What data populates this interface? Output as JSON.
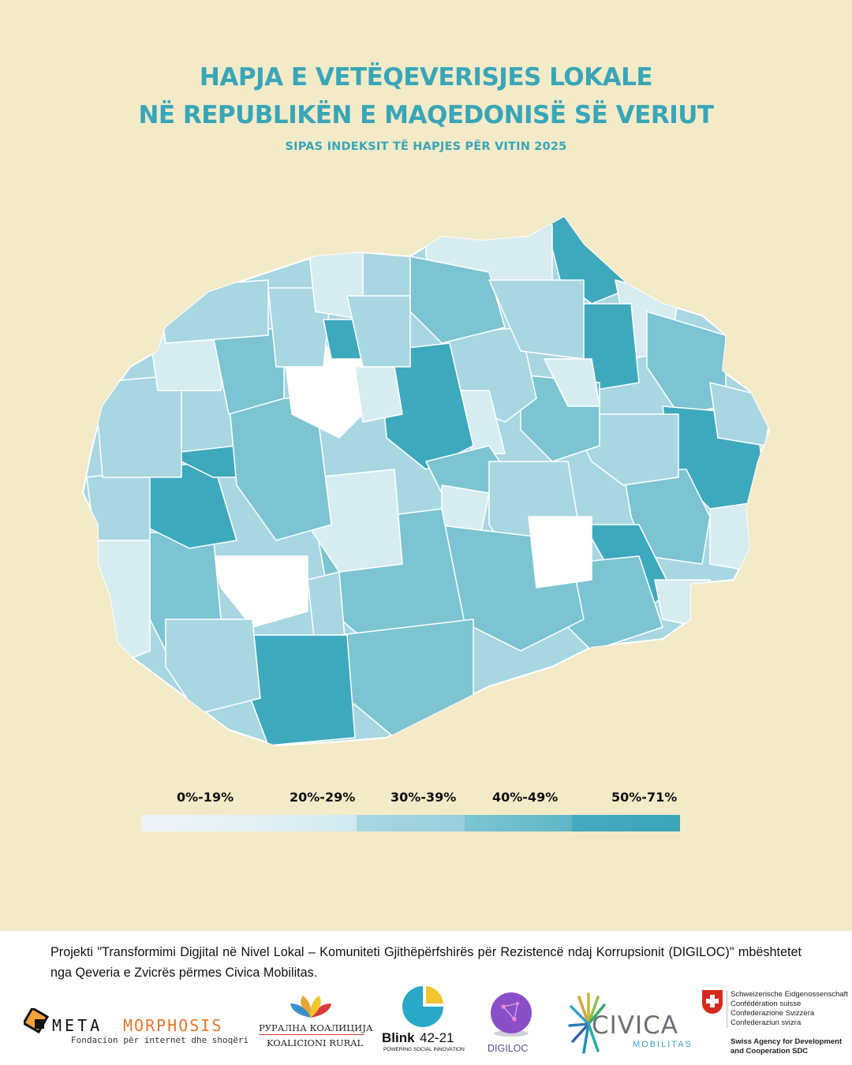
{
  "header": {
    "title_line1": "HAPJA E VETËQEVERISJES LOKALE",
    "title_line2": "NË REPUBLIKËN E MAQEDONISË SË VERIUT",
    "subtitle": "SIPAS INDEKSIT TË HAPJES PËR VITIN 2025"
  },
  "colors": {
    "background": "#f3eac8",
    "title": "#39a6b8",
    "class_colors": [
      "#ffffff",
      "#d6ecf1",
      "#a8d7e2",
      "#7cc4d2",
      "#3ea9bd"
    ]
  },
  "legend": {
    "items": [
      {
        "label": "0%-19%",
        "color": "#ffffff"
      },
      {
        "label": "20%-29%",
        "color": "#d6ecf1"
      },
      {
        "label": "30%-39%",
        "color": "#a8d7e2"
      },
      {
        "label": "40%-49%",
        "color": "#7cc4d2"
      },
      {
        "label": "50%-71%",
        "color": "#3ea9bd"
      }
    ],
    "gradient": [
      "#eef3f8",
      "#d8edf1",
      "#9fd2dd",
      "#6fbfcd",
      "#39a6b8"
    ]
  },
  "footer": {
    "text": "Projekti \"Transformimi Digjital në Nivel Lokal – Komuniteti Gjithëpërfshirës për Rezistencë ndaj Korrupsionit (DIGILOC)\" mbështetet nga Qeveria e Zvicrës përmes Civica Mobilitas."
  },
  "logos": {
    "metamorphosis_meta": "META",
    "metamorphosis_morphosis": "MORPHOSIS",
    "metamorphosis_tagline": "Fondacion për internet dhe shoqëri",
    "rural_line1": "РУРАЛНА КОАЛИЦИЈА",
    "rural_line2": "KOALICIONI RURAL",
    "blink_name": "Blink",
    "blink_number": "42-21",
    "blink_tagline": "POWERING SOCIAL INNOVATION",
    "digiloc": "DIGILOC",
    "civica": "CIVICA",
    "mobilitas": "MOBILITAS",
    "swiss_line1": "Schweizerische Eidgenossenschaft",
    "swiss_line2": "Confédération suisse",
    "swiss_line3": "Confederazione Svizzera",
    "swiss_line4": "Confederaziun svizra",
    "swiss_agency1": "Swiss Agency for Development",
    "swiss_agency2": "and Cooperation SDC"
  }
}
